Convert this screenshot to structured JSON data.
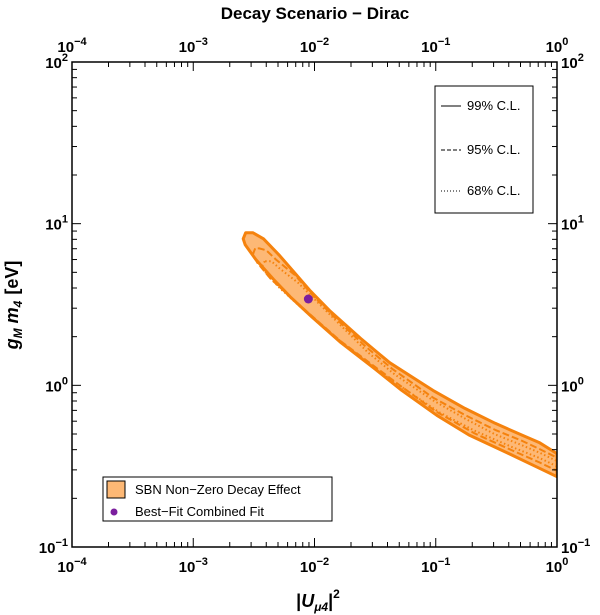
{
  "chart_data": {
    "type": "scatter",
    "title": "Decay Scenario − Dirac",
    "xlabel": {
      "prefix": "|",
      "main": "U",
      "sub": "μ4",
      "suffix": "|",
      "sup": "2"
    },
    "ylabel": {
      "g": "g",
      "g_sub": "M",
      "m": "m",
      "m_sub": "4",
      "unit": "[eV]"
    },
    "xscale": "log",
    "yscale": "log",
    "xlim": [
      0.0001,
      1
    ],
    "ylim": [
      0.1,
      100
    ],
    "x_ticks": [
      {
        "value": 0.0001,
        "base": "10",
        "exp": "−4"
      },
      {
        "value": 0.001,
        "base": "10",
        "exp": "−3"
      },
      {
        "value": 0.01,
        "base": "10",
        "exp": "−2"
      },
      {
        "value": 0.1,
        "base": "10",
        "exp": "−1"
      },
      {
        "value": 1,
        "base": "10",
        "exp": "0"
      }
    ],
    "y_ticks": [
      {
        "value": 0.1,
        "base": "10",
        "exp": "−1"
      },
      {
        "value": 1,
        "base": "10",
        "exp": "0"
      },
      {
        "value": 10,
        "base": "10",
        "exp": "1"
      },
      {
        "value": 100,
        "base": "10",
        "exp": "2"
      }
    ],
    "contours": [
      {
        "name": "99% C.L.",
        "style": "solid",
        "points": [
          [
            0.00271,
            8.79
          ],
          [
            0.00258,
            8.06
          ],
          [
            0.00268,
            7.4
          ],
          [
            0.00328,
            6.0
          ],
          [
            0.00457,
            4.54
          ],
          [
            0.0063,
            3.53
          ],
          [
            0.0095,
            2.65
          ],
          [
            0.0162,
            1.86
          ],
          [
            0.0316,
            1.26
          ],
          [
            0.0525,
            0.93
          ],
          [
            0.102,
            0.653
          ],
          [
            0.188,
            0.493
          ],
          [
            0.383,
            0.384
          ],
          [
            0.66,
            0.316
          ],
          [
            1,
            0.272
          ],
          [
            1,
            0.378
          ],
          [
            0.72,
            0.441
          ],
          [
            0.52,
            0.49
          ],
          [
            0.309,
            0.582
          ],
          [
            0.174,
            0.72
          ],
          [
            0.095,
            0.93
          ],
          [
            0.0417,
            1.38
          ],
          [
            0.024,
            1.95
          ],
          [
            0.0135,
            2.87
          ],
          [
            0.0091,
            3.89
          ],
          [
            0.0066,
            5.13
          ],
          [
            0.0051,
            6.41
          ],
          [
            0.0038,
            8.06
          ],
          [
            0.0031,
            8.79
          ]
        ]
      },
      {
        "name": "95% C.L.",
        "style": "dashed",
        "points": [
          [
            0.00324,
            7.03
          ],
          [
            0.00309,
            6.41
          ],
          [
            0.00339,
            5.71
          ],
          [
            0.00437,
            4.54
          ],
          [
            0.0063,
            3.53
          ],
          [
            0.0095,
            2.69
          ],
          [
            0.0162,
            1.89
          ],
          [
            0.0316,
            1.3
          ],
          [
            0.0525,
            0.98
          ],
          [
            0.1,
            0.69
          ],
          [
            0.209,
            0.504
          ],
          [
            0.42,
            0.398
          ],
          [
            0.72,
            0.333
          ],
          [
            1,
            0.296
          ],
          [
            1,
            0.357
          ],
          [
            0.72,
            0.403
          ],
          [
            0.52,
            0.452
          ],
          [
            0.309,
            0.53
          ],
          [
            0.174,
            0.655
          ],
          [
            0.095,
            0.84
          ],
          [
            0.044,
            1.26
          ],
          [
            0.0263,
            1.74
          ],
          [
            0.0145,
            2.65
          ],
          [
            0.0099,
            3.53
          ],
          [
            0.0069,
            4.81
          ],
          [
            0.0048,
            6.0
          ],
          [
            0.004,
            6.85
          ],
          [
            0.0035,
            7.03
          ]
        ]
      },
      {
        "name": "68% C.L.",
        "style": "dotted",
        "points": [
          [
            0.00389,
            5.86
          ],
          [
            0.00372,
            5.5
          ],
          [
            0.00398,
            4.93
          ],
          [
            0.00513,
            4.02
          ],
          [
            0.00741,
            3.12
          ],
          [
            0.0112,
            2.36
          ],
          [
            0.0195,
            1.69
          ],
          [
            0.0331,
            1.24
          ],
          [
            0.0575,
            0.93
          ],
          [
            0.107,
            0.681
          ],
          [
            0.209,
            0.524
          ],
          [
            0.427,
            0.415
          ],
          [
            0.724,
            0.354
          ],
          [
            1,
            0.315
          ],
          [
            1,
            0.34
          ],
          [
            0.724,
            0.382
          ],
          [
            0.513,
            0.426
          ],
          [
            0.309,
            0.497
          ],
          [
            0.178,
            0.617
          ],
          [
            0.0955,
            0.806
          ],
          [
            0.0457,
            1.17
          ],
          [
            0.0275,
            1.6
          ],
          [
            0.0158,
            2.42
          ],
          [
            0.0107,
            3.24
          ],
          [
            0.0074,
            4.28
          ],
          [
            0.0052,
            5.25
          ],
          [
            0.0044,
            5.86
          ]
        ]
      }
    ],
    "best_fit": {
      "x": 0.0089,
      "y": 3.42
    },
    "colors": {
      "fill": "#fdb875",
      "line": "#f5820d",
      "point": "#7b1f9e",
      "axis": "#000000"
    },
    "legend_top": {
      "position": "top-right",
      "entries": [
        {
          "label": "99% C.L.",
          "style": "solid"
        },
        {
          "label": "95% C.L.",
          "style": "dashed"
        },
        {
          "label": "68% C.L.",
          "style": "dotted"
        }
      ]
    },
    "legend_bottom": {
      "position": "bottom-left",
      "entries": [
        {
          "label": "SBN Non−Zero Decay Effect",
          "marker": "filled-square"
        },
        {
          "label": "Best−Fit Combined Fit",
          "marker": "dot"
        }
      ]
    }
  }
}
